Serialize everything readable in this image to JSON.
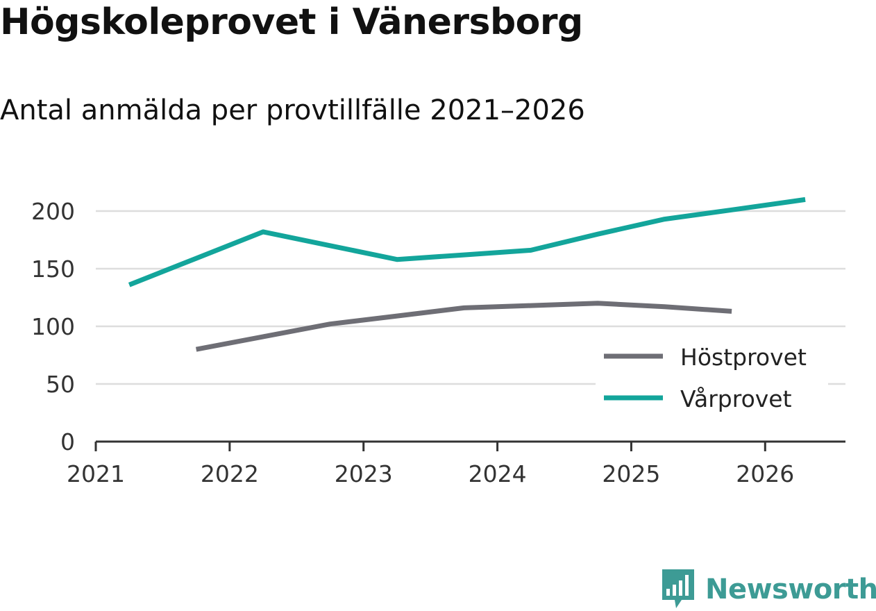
{
  "title": "Högskoleprovet i Vänersborg",
  "subtitle": "Antal anmälda per provtillfälle 2021–2026",
  "brand": "Newsworthy",
  "colors": {
    "host": "#6e6e75",
    "var": "#13a59b",
    "grid": "#dddddd",
    "axis": "#333333",
    "brand": "#3d9b95"
  },
  "chart_data": {
    "type": "line",
    "title": "Högskoleprovet i Vänersborg",
    "subtitle": "Antal anmälda per provtillfälle 2021–2026",
    "xlabel": "",
    "ylabel": "",
    "ylim": [
      0,
      200
    ],
    "xlim": [
      2021,
      2026.6
    ],
    "yticks": [
      0,
      50,
      100,
      150,
      200
    ],
    "xticks": [
      2021,
      2022,
      2023,
      2024,
      2025,
      2026
    ],
    "grid": true,
    "legend_position": "bottom-right",
    "series": [
      {
        "name": "Höstprovet",
        "color": "#6e6e75",
        "x": [
          2021.75,
          2022.25,
          2022.75,
          2023.25,
          2023.75,
          2024.25,
          2024.75,
          2025.25,
          2025.75
        ],
        "y": [
          80,
          91,
          102,
          109,
          116,
          118,
          120,
          117,
          113
        ]
      },
      {
        "name": "Vårprovet",
        "color": "#13a59b",
        "x": [
          2021.25,
          2021.75,
          2022.25,
          2022.75,
          2023.25,
          2023.75,
          2024.25,
          2024.75,
          2025.25,
          2025.75,
          2026.3
        ],
        "y": [
          136,
          159,
          182,
          170,
          158,
          162,
          166,
          180,
          193,
          201,
          210
        ]
      }
    ]
  }
}
